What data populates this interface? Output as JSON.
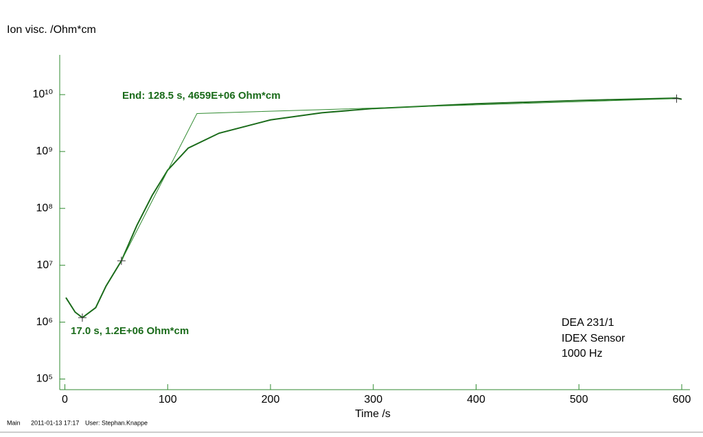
{
  "chart_data": {
    "type": "line",
    "y_label": "Ion visc. /Ohm*cm",
    "x_label": "Time /s",
    "log_y": true,
    "xlim": [
      -5,
      608
    ],
    "ylim": [
      65000,
      50000000000
    ],
    "xticks": [
      0,
      100,
      200,
      300,
      400,
      500,
      600
    ],
    "yticks": [
      {
        "value": 100000,
        "label": "10⁵"
      },
      {
        "value": 1000000,
        "label": "10⁶"
      },
      {
        "value": 10000000,
        "label": "10⁷"
      },
      {
        "value": 100000000,
        "label": "10⁸"
      },
      {
        "value": 1000000000,
        "label": "10⁹"
      },
      {
        "value": 10000000000,
        "label": "10¹⁰"
      }
    ],
    "series": [
      {
        "color": "#1a6b1a",
        "x": [
          1,
          10,
          17,
          30,
          40,
          55,
          70,
          85,
          100,
          120,
          150,
          200,
          250,
          300,
          400,
          500,
          595,
          600
        ],
        "values": [
          2700000,
          1500000,
          1200000,
          1800000,
          4300000,
          12000000,
          50000000,
          170000000,
          470000000,
          1150000000,
          2100000000,
          3600000000,
          4800000000,
          5700000000,
          6900000000,
          7900000000,
          8700000000,
          8300000000
        ]
      },
      {
        "color": "#2f8a2f",
        "x": [
          55,
          128.5,
          595
        ],
        "values": [
          12000000,
          4659000000,
          8500000000
        ]
      }
    ],
    "markers": {
      "color": "#333333",
      "x": [
        17,
        55,
        595
      ],
      "values": [
        1200000,
        12000000,
        8500000000
      ]
    },
    "annotations": [
      "End: 128.5 s, 4659E+06 Ohm*cm",
      "17.0 s, 1.2E+06 Ohm*cm"
    ],
    "info": [
      "DEA 231/1",
      "IDEX Sensor",
      "1000 Hz"
    ],
    "footer": [
      "Main",
      "2011-01-13 17:17",
      "User: Stephan.Knappe"
    ]
  }
}
